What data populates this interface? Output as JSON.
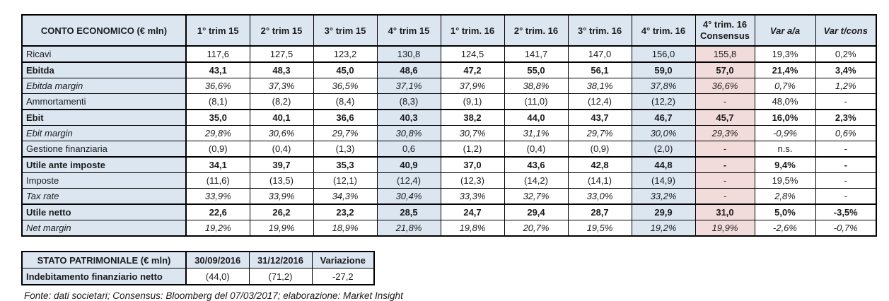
{
  "colors": {
    "header_blue": "#dce6f1",
    "highlight_pink": "#f2dcdb",
    "border_black": "#000000"
  },
  "income_table": {
    "title": "CONTO ECONOMICO (€ mln)",
    "columns": [
      {
        "label": "1° trim 15"
      },
      {
        "label": "2° trim 15"
      },
      {
        "label": "3° trim 15"
      },
      {
        "label": "4° trim 15"
      },
      {
        "label": "1° trim. 16"
      },
      {
        "label": "2° trim. 16"
      },
      {
        "label": "3° trim. 16"
      },
      {
        "label": "4° trim. 16"
      },
      {
        "label": "4° trim. 16",
        "label2": "Consensus",
        "highlight": "pink"
      },
      {
        "label": "Var a/a",
        "italic": true
      },
      {
        "label": "Var t/cons",
        "italic": true,
        "highlight": "pink"
      }
    ],
    "col_bg": [
      "white",
      "white",
      "white",
      "blue",
      "white",
      "white",
      "white",
      "blue",
      "pink",
      "white",
      "white"
    ],
    "rows": [
      {
        "label": "Ricavi",
        "style": "normal",
        "values": [
          "117,6",
          "127,5",
          "123,2",
          "130,8",
          "124,5",
          "141,7",
          "147,0",
          "156,0",
          "155,8",
          "19,3%",
          "0,2%"
        ]
      },
      {
        "label": "Ebitda",
        "style": "bold",
        "values": [
          "43,1",
          "48,3",
          "45,0",
          "48,6",
          "47,2",
          "55,0",
          "56,1",
          "59,0",
          "57,0",
          "21,4%",
          "3,4%"
        ]
      },
      {
        "label": "Ebitda margin",
        "style": "italic",
        "values": [
          "36,6%",
          "37,3%",
          "36,5%",
          "37,1%",
          "37,9%",
          "38,8%",
          "38,1%",
          "37,8%",
          "36,6%",
          "0,7%",
          "1,2%"
        ]
      },
      {
        "label": "Ammortamenti",
        "style": "normal",
        "values": [
          "(8,1)",
          "(8,2)",
          "(8,4)",
          "(8,3)",
          "(9,1)",
          "(11,0)",
          "(12,4)",
          "(12,2)",
          "-",
          "48,0%",
          "-"
        ]
      },
      {
        "label": "Ebit",
        "style": "bold",
        "values": [
          "35,0",
          "40,1",
          "36,6",
          "40,3",
          "38,2",
          "44,0",
          "43,7",
          "46,7",
          "45,7",
          "16,0%",
          "2,3%"
        ]
      },
      {
        "label": "Ebit margin",
        "style": "italic",
        "values": [
          "29,8%",
          "30,6%",
          "29,7%",
          "30,8%",
          "30,7%",
          "31,1%",
          "29,7%",
          "30,0%",
          "29,3%",
          "-0,9%",
          "0,6%"
        ]
      },
      {
        "label": "Gestione finanziaria",
        "style": "normal",
        "values": [
          "(0,9)",
          "(0,4)",
          "(1,3)",
          "0,6",
          "(1,2)",
          "(0,4)",
          "(0,9)",
          "(2,0)",
          "-",
          "n.s.",
          "-"
        ]
      },
      {
        "label": "Utile ante imposte",
        "style": "bold",
        "values": [
          "34,1",
          "39,7",
          "35,3",
          "40,9",
          "37,0",
          "43,6",
          "42,8",
          "44,8",
          "-",
          "9,4%",
          "-"
        ]
      },
      {
        "label": "Imposte",
        "style": "normal",
        "values": [
          "(11,6)",
          "(13,5)",
          "(12,1)",
          "(12,4)",
          "(12,3)",
          "(14,2)",
          "(14,1)",
          "(14,9)",
          "-",
          "19,5%",
          "-"
        ]
      },
      {
        "label": "Tax rate",
        "style": "italic",
        "values": [
          "33,9%",
          "33,9%",
          "34,3%",
          "30,4%",
          "33,3%",
          "32,7%",
          "33,0%",
          "33,2%",
          "-",
          "2,8%",
          "-"
        ]
      },
      {
        "label": "Utile netto",
        "style": "bold",
        "values": [
          "22,6",
          "26,2",
          "23,2",
          "28,5",
          "24,7",
          "29,4",
          "28,7",
          "29,9",
          "31,0",
          "5,0%",
          "-3,5%"
        ]
      },
      {
        "label": "Net margin",
        "style": "italic",
        "values": [
          "19,2%",
          "19,9%",
          "18,9%",
          "21,8%",
          "19,8%",
          "20,7%",
          "19,5%",
          "19,2%",
          "19,9%",
          "-2,6%",
          "-0,7%"
        ]
      }
    ]
  },
  "balance_table": {
    "title": "STATO PATRIMONIALE (€ mln)",
    "columns": [
      "30/09/2016",
      "31/12/2016",
      "Variazione"
    ],
    "rows": [
      {
        "label": "Indebitamento finanziario netto",
        "values": [
          "(44,0)",
          "(71,2)",
          "-27,2"
        ]
      }
    ]
  },
  "footnote": "Fonte: dati societari; Consensus: Bloomberg del 07/03/2017; elaborazione: Market Insight"
}
